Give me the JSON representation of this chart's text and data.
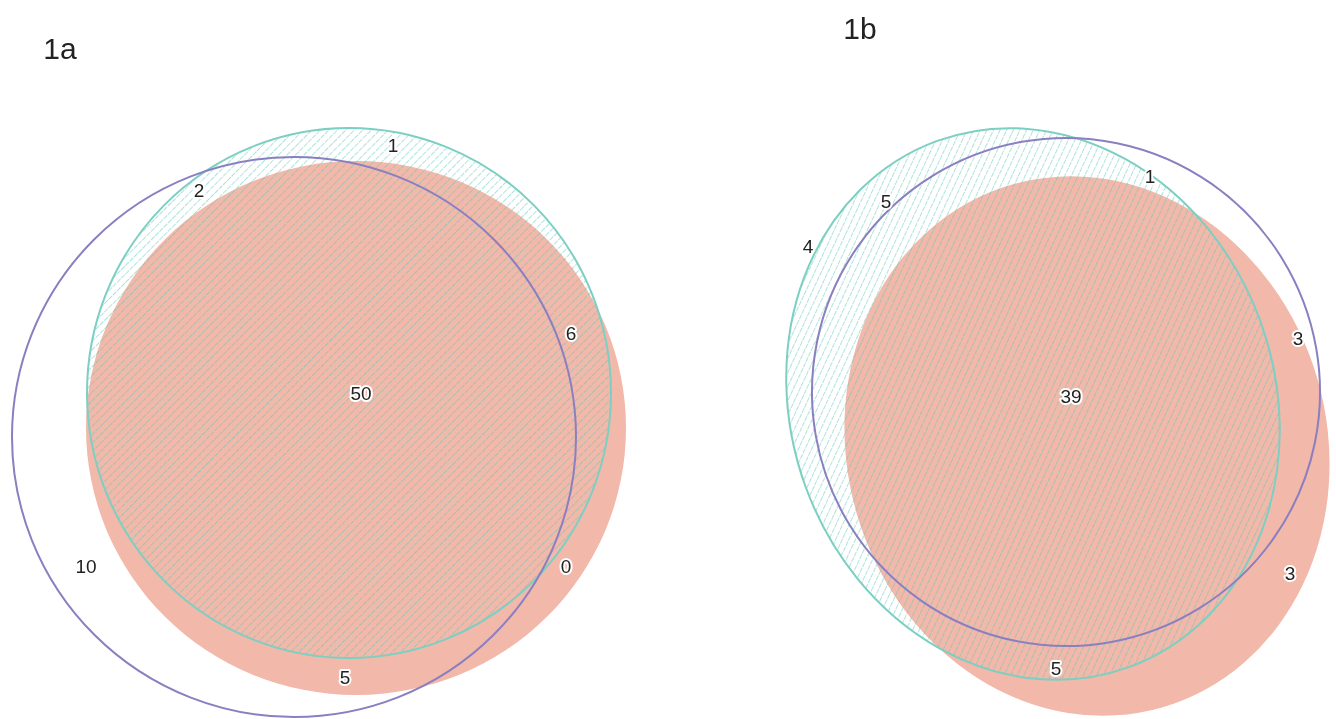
{
  "chart_data": [
    {
      "type": "other",
      "title": "1a",
      "categories": [
        null,
        null,
        null,
        null,
        null,
        null,
        null
      ],
      "values": [
        1,
        2,
        6,
        50,
        10,
        0,
        5
      ],
      "data_labels": true
    },
    {
      "type": "other",
      "title": "1b",
      "categories": [
        null,
        null,
        null,
        null,
        null,
        null,
        null
      ],
      "values": [
        1,
        5,
        4,
        3,
        39,
        3,
        5
      ],
      "data_labels": true
    }
  ]
}
